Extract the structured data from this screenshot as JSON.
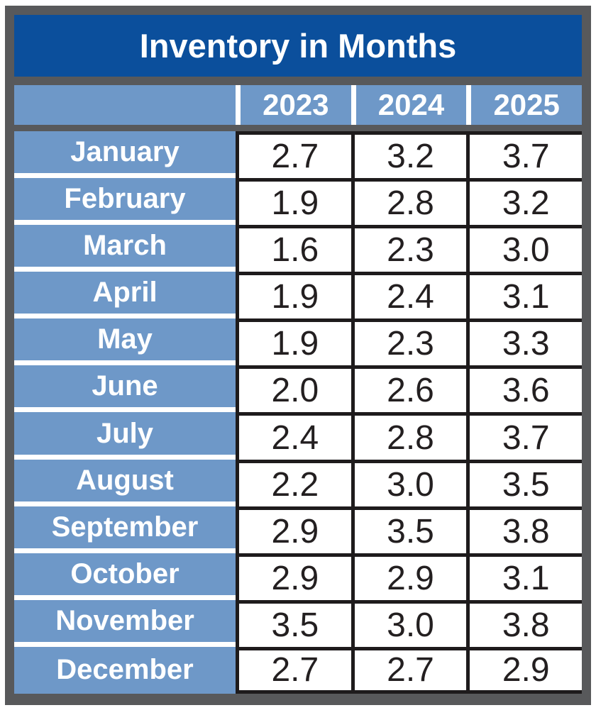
{
  "title": "Inventory in Months",
  "table": {
    "years": [
      "2023",
      "2024",
      "2025"
    ],
    "rows": [
      {
        "month": "January",
        "values": [
          "2.7",
          "3.2",
          "3.7"
        ]
      },
      {
        "month": "February",
        "values": [
          "1.9",
          "2.8",
          "3.2"
        ]
      },
      {
        "month": "March",
        "values": [
          "1.6",
          "2.3",
          "3.0"
        ]
      },
      {
        "month": "April",
        "values": [
          "1.9",
          "2.4",
          "3.1"
        ]
      },
      {
        "month": "May",
        "values": [
          "1.9",
          "2.3",
          "3.3"
        ]
      },
      {
        "month": "June",
        "values": [
          "2.0",
          "2.6",
          "3.6"
        ]
      },
      {
        "month": "July",
        "values": [
          "2.4",
          "2.8",
          "3.7"
        ]
      },
      {
        "month": "August",
        "values": [
          "2.2",
          "3.0",
          "3.5"
        ]
      },
      {
        "month": "September",
        "values": [
          "2.9",
          "3.5",
          "3.8"
        ]
      },
      {
        "month": "October",
        "values": [
          "2.9",
          "2.9",
          "3.1"
        ]
      },
      {
        "month": "November",
        "values": [
          "3.5",
          "3.0",
          "3.8"
        ]
      },
      {
        "month": "December",
        "values": [
          "2.7",
          "2.7",
          "2.9"
        ]
      }
    ]
  },
  "colors": {
    "frame_gray": "#58595B",
    "title_blue": "#0B4F9C",
    "row_blue": "#6E98C8",
    "border_black": "#1E1B1C",
    "value_text": "#231F20",
    "white": "#FFFFFF"
  },
  "chart_data": {
    "type": "table",
    "title": "Inventory in Months",
    "categories": [
      "January",
      "February",
      "March",
      "April",
      "May",
      "June",
      "July",
      "August",
      "September",
      "October",
      "November",
      "December"
    ],
    "series": [
      {
        "name": "2023",
        "values": [
          2.7,
          1.9,
          1.6,
          1.9,
          1.9,
          2.0,
          2.4,
          2.2,
          2.9,
          2.9,
          3.5,
          2.7
        ]
      },
      {
        "name": "2024",
        "values": [
          3.2,
          2.8,
          2.3,
          2.4,
          2.3,
          2.6,
          2.8,
          3.0,
          3.5,
          2.9,
          3.0,
          2.7
        ]
      },
      {
        "name": "2025",
        "values": [
          3.7,
          3.2,
          3.0,
          3.1,
          3.3,
          3.6,
          3.7,
          3.5,
          3.8,
          3.1,
          3.8,
          2.9
        ]
      }
    ],
    "legend_position": "header-row",
    "grid": true
  }
}
